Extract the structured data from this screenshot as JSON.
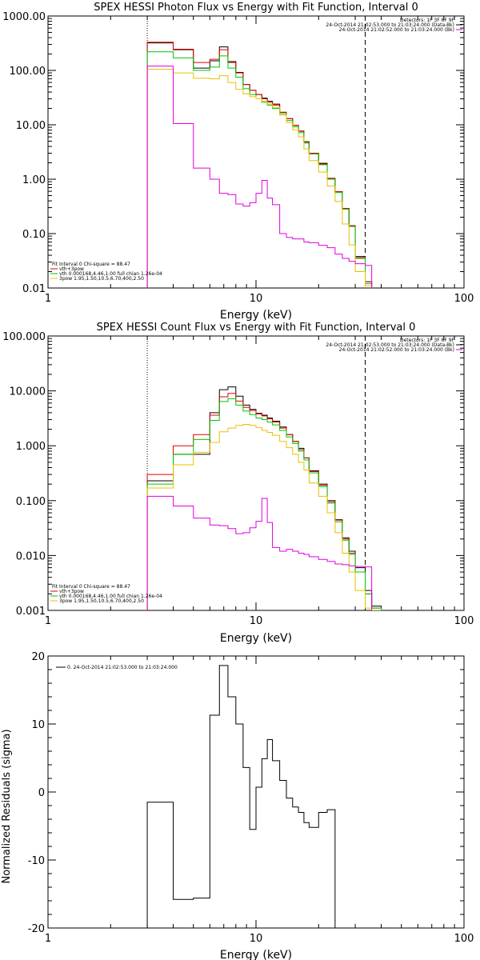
{
  "chart_data": [
    {
      "type": "line",
      "step": true,
      "title": "SPEX HESSI Photon Flux vs Energy with Fit Function, Interval 0",
      "xlabel": "Energy (keV)",
      "ylabel": "",
      "xscale": "log",
      "yscale": "log",
      "xlim": [
        1,
        100
      ],
      "ylim": [
        0.01,
        1000
      ],
      "xtick_labels": [
        "1",
        "10",
        "100"
      ],
      "ytick_labels": [
        "1000.00",
        "100.00",
        "10.00",
        "1.00",
        "0.10",
        "0.01"
      ],
      "vlines": [
        {
          "x": 3.0,
          "style": "dotted"
        },
        {
          "x": 33.5,
          "style": "dashed"
        }
      ],
      "x_edges": [
        3.0,
        4.0,
        5.0,
        6.0,
        6.67,
        7.33,
        8.0,
        8.67,
        9.33,
        10.0,
        10.67,
        11.33,
        12.0,
        13.0,
        14.0,
        15.0,
        16.0,
        17.0,
        18.0,
        20.0,
        22.0,
        24.0,
        26.0,
        28.0,
        30.0,
        33.5,
        36.0
      ],
      "series": [
        {
          "name": "",
          "color": "#000000",
          "values": [
            320,
            240,
            110,
            150,
            270,
            145,
            92,
            55,
            43,
            36,
            31,
            27,
            24,
            17,
            13,
            9.8,
            7.7,
            4.9,
            3.0,
            1.96,
            1.04,
            0.59,
            0.29,
            0.14,
            0.038,
            0.013
          ]
        },
        {
          "name": "vth+3pow",
          "color": "#e00000",
          "values": [
            330,
            245,
            140,
            160,
            240,
            140,
            90,
            55,
            43,
            36,
            30,
            26,
            23,
            17,
            13,
            9.8,
            7.6,
            4.8,
            3.0,
            1.9,
            1.03,
            0.59,
            0.29,
            0.14,
            0.036,
            0.013
          ]
        },
        {
          "name": "vth 0.000168,4.46,1.00  full chian 1.26e-04",
          "color": "#00c800",
          "values": [
            220,
            170,
            100,
            115,
            185,
            110,
            75,
            46,
            36,
            30,
            26,
            23,
            20,
            16,
            12,
            9.2,
            7.2,
            4.6,
            2.9,
            1.85,
            1.0,
            0.57,
            0.28,
            0.135,
            0.035,
            0.012
          ]
        },
        {
          "name": "3pow 1.95,1.50,10.5,6.70,400,2.50",
          "color": "#e8c000",
          "values": [
            105,
            90,
            72,
            70,
            80,
            60,
            45,
            37,
            33,
            30,
            27,
            24,
            21,
            15,
            11,
            8.1,
            6.0,
            3.6,
            2.2,
            1.35,
            0.75,
            0.39,
            0.15,
            0.062,
            0.02,
            0.011
          ]
        },
        {
          "name": "",
          "color": "#e000e0",
          "values": [
            120,
            10.5,
            1.6,
            1.0,
            0.55,
            0.52,
            0.35,
            0.32,
            0.37,
            0.55,
            0.95,
            0.45,
            0.34,
            0.1,
            0.085,
            0.08,
            0.08,
            0.07,
            0.068,
            0.061,
            0.055,
            0.042,
            0.035,
            0.031,
            0.028,
            0.026
          ]
        }
      ],
      "legend_top": [
        {
          "text": "Detectors: 1F 3F 6F 9F",
          "color": ""
        },
        {
          "text": "24-Oct-2014 21:02:53.000 to 21:03:24.000 (Data-Bk)",
          "color": "#000000"
        },
        {
          "text": "24-Oct-2014 21:02:52.000 to 21:03:24.000 (Bk)",
          "color": "#e000e0"
        }
      ],
      "legend_bottom": [
        {
          "text": "Fit Interval 0   Chi-square = 88.47",
          "color": ""
        },
        {
          "text": "vth+3pow",
          "color": "#e00000"
        },
        {
          "text": "vth 0.000168,4.46,1.00  full chian 1.26e-04",
          "color": "#00c800"
        },
        {
          "text": "3pow 1.95,1.50,10.5,6.70,400,2.50",
          "color": "#e8c000"
        }
      ]
    },
    {
      "type": "line",
      "step": true,
      "title": "SPEX HESSI Count Flux vs Energy with Fit Function, Interval 0",
      "xlabel": "Energy (keV)",
      "ylabel": "",
      "xscale": "log",
      "yscale": "log",
      "xlim": [
        1,
        100
      ],
      "ylim": [
        0.001,
        100
      ],
      "xtick_labels": [
        "1",
        "10",
        "100"
      ],
      "ytick_labels": [
        "100.000",
        "10.000",
        "1.000",
        "0.100",
        "0.010",
        "0.001"
      ],
      "vlines": [
        {
          "x": 3.0,
          "style": "dotted"
        },
        {
          "x": 33.5,
          "style": "dashed"
        }
      ],
      "x_edges": [
        3.0,
        4.0,
        5.0,
        6.0,
        6.67,
        7.33,
        8.0,
        8.67,
        9.33,
        10.0,
        10.67,
        11.33,
        12.0,
        13.0,
        14.0,
        15.0,
        16.0,
        17.0,
        18.0,
        20.0,
        22.0,
        24.0,
        26.0,
        28.0,
        30.0,
        33.5,
        36.0,
        40.0
      ],
      "series": [
        {
          "name": "",
          "color": "#000000",
          "values": [
            0.23,
            0.7,
            0.7,
            4.0,
            10.5,
            11.8,
            8.0,
            5.5,
            4.6,
            3.9,
            3.6,
            3.2,
            2.8,
            2.2,
            1.6,
            1.2,
            0.9,
            0.6,
            0.35,
            0.2,
            0.1,
            0.045,
            0.021,
            0.012,
            0.006,
            0.0023,
            0.0012
          ]
        },
        {
          "name": "vth+3pow",
          "color": "#e00000",
          "values": [
            0.3,
            1.0,
            1.6,
            3.6,
            7.8,
            9.0,
            6.5,
            5.0,
            4.4,
            3.8,
            3.5,
            3.1,
            2.7,
            2.1,
            1.6,
            1.2,
            0.85,
            0.6,
            0.34,
            0.19,
            0.095,
            0.044,
            0.02,
            0.011,
            0.005,
            0.002,
            0.0011
          ]
        },
        {
          "name": "vth 0.000168,4.46,1.00  full chian 1.26e-04",
          "color": "#00c800",
          "values": [
            0.2,
            0.7,
            1.3,
            2.9,
            6.4,
            7.2,
            5.5,
            4.3,
            3.7,
            3.2,
            3.0,
            2.7,
            2.4,
            1.9,
            1.45,
            1.1,
            0.8,
            0.55,
            0.32,
            0.18,
            0.09,
            0.041,
            0.019,
            0.0105,
            0.005,
            0.002,
            0.0011
          ]
        },
        {
          "name": "3pow 1.95,1.50,10.5,6.70,400,2.50",
          "color": "#e8c000",
          "values": [
            0.17,
            0.45,
            0.76,
            1.15,
            1.8,
            2.1,
            2.35,
            2.45,
            2.35,
            2.15,
            1.9,
            1.75,
            1.55,
            1.2,
            0.92,
            0.7,
            0.5,
            0.36,
            0.21,
            0.12,
            0.06,
            0.026,
            0.011,
            0.005,
            0.0023,
            0.0011,
            0.001
          ]
        },
        {
          "name": "",
          "color": "#e000e0",
          "values": [
            0.12,
            0.08,
            0.048,
            0.036,
            0.035,
            0.031,
            0.025,
            0.026,
            0.032,
            0.042,
            0.11,
            0.04,
            0.014,
            0.012,
            0.013,
            0.012,
            0.011,
            0.0105,
            0.0095,
            0.0085,
            0.0078,
            0.007,
            0.0068,
            0.0065,
            0.0063,
            0.0062
          ]
        }
      ],
      "legend_top": [
        {
          "text": "Detectors: 1F 3F 6F 9F",
          "color": ""
        },
        {
          "text": "24-Oct-2014 21:02:53.000 to 21:03:24.000 (Data-Bk)",
          "color": "#000000"
        },
        {
          "text": "24-Oct-2014 21:02:52.000 to 21:03:24.000 (Bk)",
          "color": "#e000e0"
        }
      ],
      "legend_bottom": [
        {
          "text": "Fit Interval 0   Chi-square = 88.47",
          "color": ""
        },
        {
          "text": "vth+3pow",
          "color": "#e00000"
        },
        {
          "text": "vth 0.000168,4.46,1.00  full chian 1.26e-04",
          "color": "#00c800"
        },
        {
          "text": "3pow 1.95,1.50,10.5,6.70,400,2.50",
          "color": "#e8c000"
        }
      ]
    },
    {
      "type": "line",
      "step": true,
      "title": "",
      "xlabel": "Energy (keV)",
      "ylabel": "Normalized Residuals (sigma)",
      "xscale": "log",
      "yscale": "linear",
      "xlim": [
        1,
        100
      ],
      "ylim": [
        -20,
        20
      ],
      "xtick_labels": [
        "1",
        "10",
        "100"
      ],
      "ytick_labels": [
        "20",
        "10",
        "0",
        "-10",
        "-20"
      ],
      "x_edges": [
        3.0,
        4.0,
        5.0,
        6.0,
        6.67,
        7.33,
        8.0,
        8.67,
        9.33,
        10.0,
        10.67,
        11.33,
        12.0,
        13.0,
        14.0,
        15.0,
        16.0,
        17.0,
        18.0,
        20.0,
        22.0,
        24.0,
        26.0,
        28.0,
        30.0,
        33.5
      ],
      "series": [
        {
          "name": "0. 24-Oct-2014 21:02:53.000 to 21:03:24.000",
          "color": "#000000",
          "values": [
            -1.5,
            -15.8,
            -15.6,
            11.3,
            18.6,
            14.0,
            10.0,
            3.6,
            -5.5,
            0.7,
            4.9,
            7.7,
            4.6,
            1.7,
            -0.9,
            -2.2,
            -3.0,
            -4.5,
            -5.2,
            -3.0,
            -2.6
          ]
        }
      ],
      "series_extents": [
        3.0,
        4.0,
        5.0,
        6.0,
        6.67,
        7.33,
        8.0,
        8.67,
        9.33,
        10.0,
        10.67,
        11.33,
        12.0,
        13.0,
        14.0,
        15.0,
        16.0,
        17.0,
        18.0,
        20.0,
        22.0,
        24.0,
        26.0,
        28.0,
        30.0,
        33.5
      ],
      "legend_top": [
        {
          "text": "0. 24-Oct-2014 21:02:53.000 to 21:03:24.000",
          "color": "#000000"
        }
      ]
    }
  ]
}
